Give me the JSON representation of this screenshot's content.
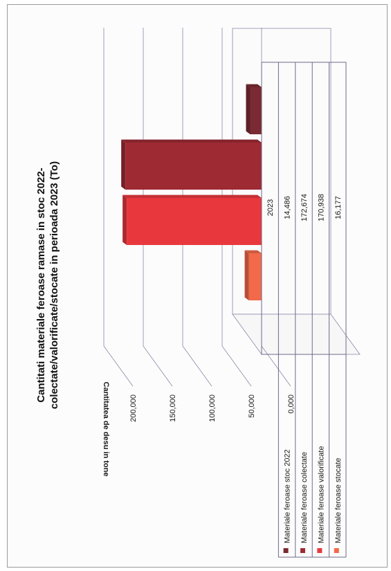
{
  "chart_data": {
    "type": "bar",
    "title": "Cantitati materiale feroase ramase in stoc 2022-colectate/valorificate/stocate in perioada 2023 (To)",
    "title_lines": [
      "Cantitati materiale feroase ramase in stoc 2022-",
      "colectate/valorificate/stocate in perioada 2023 (To)"
    ],
    "ylabel": "Cantitatea de desu in tone",
    "ylim": [
      0,
      200000
    ],
    "y_ticks": [
      "0,000",
      "50,000",
      "100,000",
      "150,000",
      "200,000"
    ],
    "categories": [
      "2023"
    ],
    "series": [
      {
        "name": "Materiale feroase stoc 2022",
        "values": [
          14486
        ],
        "label": "14,486",
        "color": "#7a2a33"
      },
      {
        "name": "Materiale feroase colectate",
        "values": [
          172674
        ],
        "label": "172,674",
        "color": "#9e2a34"
      },
      {
        "name": "Materiale feroase valorificate",
        "values": [
          170938
        ],
        "label": "170,938",
        "color": "#e8383e"
      },
      {
        "name": "Materiale feroase stocate",
        "values": [
          16177
        ],
        "label": "16,177",
        "color": "#f26a4a"
      }
    ],
    "grid": true,
    "legend": "data-table",
    "orientation": "rotated-90-counterclockwise"
  }
}
